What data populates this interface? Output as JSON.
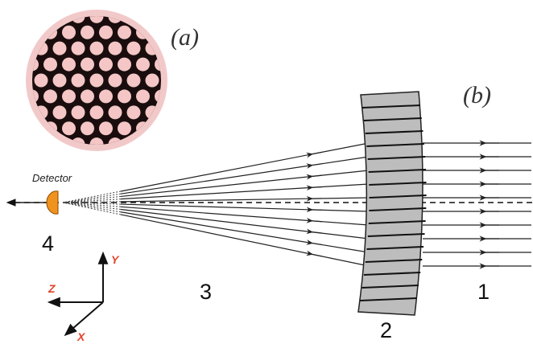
{
  "labels": {
    "panel_a": "(a)",
    "panel_b": "(b)",
    "detector": "Detector",
    "regions": [
      "1",
      "2",
      "3",
      "4"
    ],
    "axes": {
      "y": "Y",
      "z": "Z",
      "x": "X"
    }
  }
}
